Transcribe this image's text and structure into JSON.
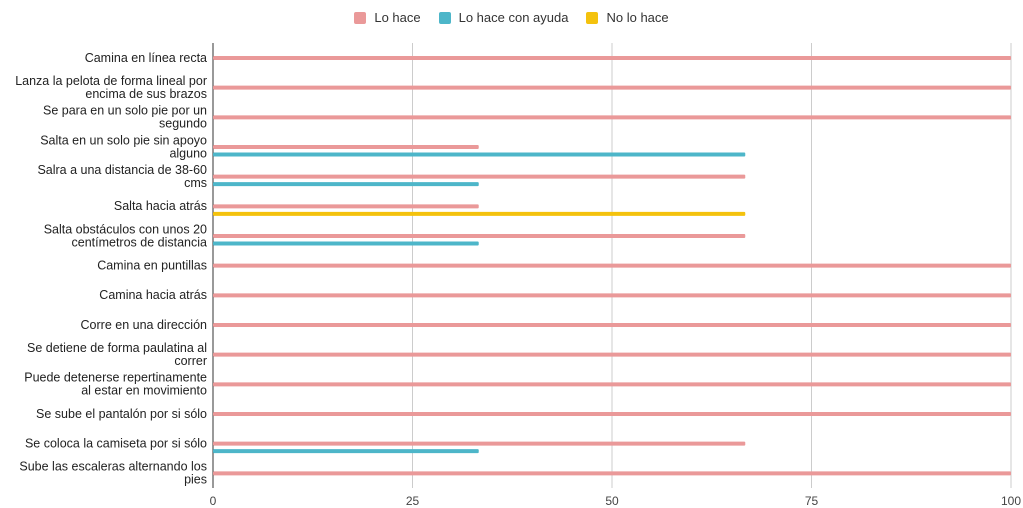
{
  "chart_data": {
    "type": "bar",
    "orientation": "horizontal",
    "categories": [
      [
        "Camina en línea recta"
      ],
      [
        "Lanza la pelota de forma lineal por",
        "encima de sus brazos"
      ],
      [
        "Se para en un solo pie por un",
        "segundo"
      ],
      [
        "Salta en un solo pie sin apoyo",
        "alguno"
      ],
      [
        "Salra a una distancia de 38-60",
        "cms"
      ],
      [
        "Salta hacia atrás"
      ],
      [
        "Salta obstáculos con unos 20",
        "centímetros de distancia"
      ],
      [
        "Camina en puntillas"
      ],
      [
        "Camina hacia atrás"
      ],
      [
        "Corre en una dirección"
      ],
      [
        "Se detiene de forma paulatina al",
        "correr"
      ],
      [
        "Puede detenerse repertinamente",
        "al estar en movimiento"
      ],
      [
        "Se sube el pantalón por si sólo"
      ],
      [
        "Se coloca la camiseta por si sólo"
      ],
      [
        "Sube las escaleras alternando los",
        "pies"
      ]
    ],
    "series": [
      {
        "name": "Lo hace",
        "color": "#ea9999",
        "values": [
          100,
          100,
          100,
          33.3,
          66.7,
          33.3,
          66.7,
          100,
          100,
          100,
          100,
          100,
          100,
          66.7,
          100
        ]
      },
      {
        "name": "Lo hace con ayuda",
        "color": "#4db6c9",
        "values": [
          0,
          0,
          0,
          66.7,
          33.3,
          0,
          33.3,
          0,
          0,
          0,
          0,
          0,
          0,
          33.3,
          0
        ]
      },
      {
        "name": "No lo hace",
        "color": "#f4c20d",
        "values": [
          0,
          0,
          0,
          0,
          0,
          66.7,
          0,
          0,
          0,
          0,
          0,
          0,
          0,
          0,
          0
        ]
      }
    ],
    "xlim": [
      0,
      100
    ],
    "xticks": [
      "0",
      "25",
      "50",
      "75",
      "100"
    ],
    "grid": true,
    "legend": "top-center"
  }
}
